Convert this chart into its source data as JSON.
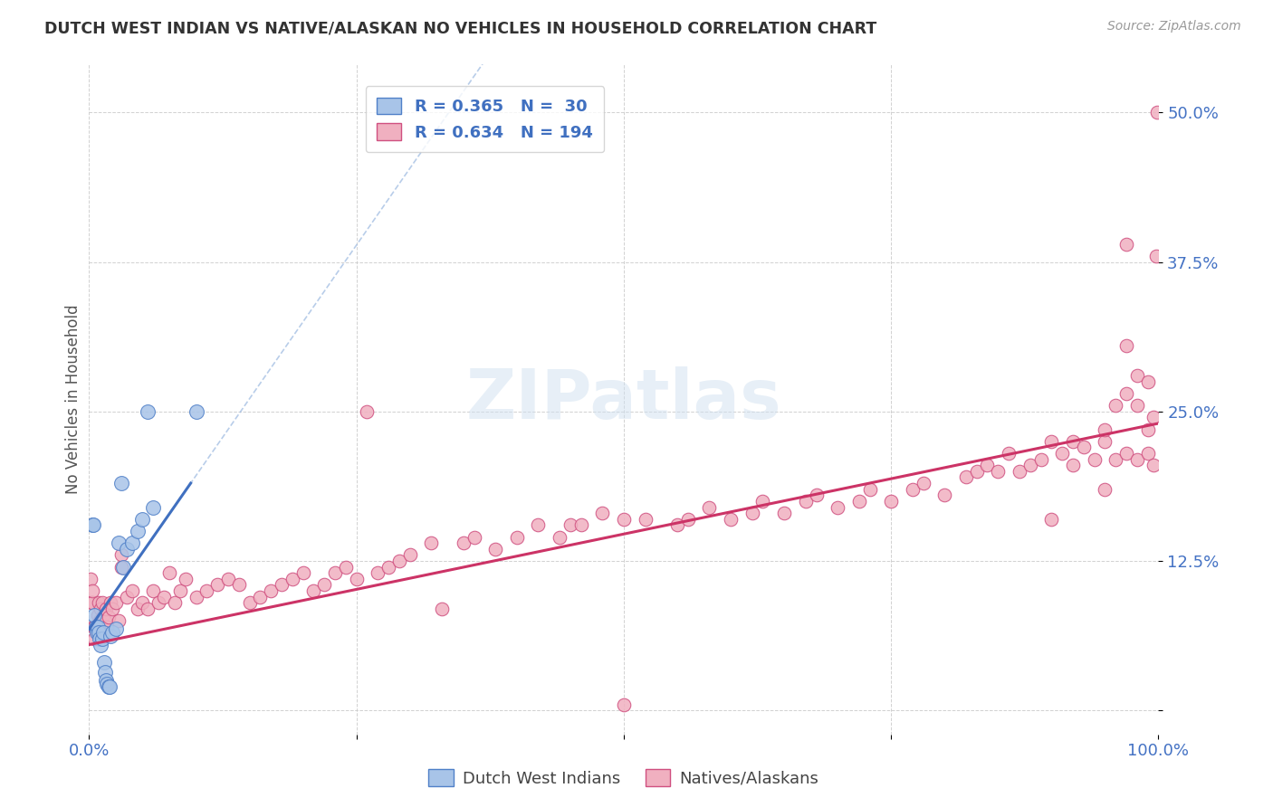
{
  "title": "DUTCH WEST INDIAN VS NATIVE/ALASKAN NO VEHICLES IN HOUSEHOLD CORRELATION CHART",
  "source": "Source: ZipAtlas.com",
  "ylabel": "No Vehicles in Household",
  "xlim": [
    0.0,
    1.0
  ],
  "ylim": [
    -0.02,
    0.54
  ],
  "legend_blue_r": "0.365",
  "legend_blue_n": "30",
  "legend_pink_r": "0.634",
  "legend_pink_n": "194",
  "blue_scatter_color": "#a8c4e8",
  "blue_edge_color": "#5080c8",
  "pink_scatter_color": "#f0b0c0",
  "pink_edge_color": "#d05080",
  "blue_line_color": "#4070c0",
  "pink_line_color": "#cc3366",
  "blue_dashed_color": "#9ab8e0",
  "blue_scatter": [
    [
      0.003,
      0.155
    ],
    [
      0.004,
      0.155
    ],
    [
      0.005,
      0.08
    ],
    [
      0.006,
      0.07
    ],
    [
      0.007,
      0.065
    ],
    [
      0.008,
      0.07
    ],
    [
      0.009,
      0.065
    ],
    [
      0.01,
      0.06
    ],
    [
      0.011,
      0.055
    ],
    [
      0.012,
      0.06
    ],
    [
      0.013,
      0.065
    ],
    [
      0.014,
      0.04
    ],
    [
      0.015,
      0.032
    ],
    [
      0.016,
      0.025
    ],
    [
      0.017,
      0.022
    ],
    [
      0.018,
      0.02
    ],
    [
      0.019,
      0.02
    ],
    [
      0.02,
      0.062
    ],
    [
      0.022,
      0.065
    ],
    [
      0.025,
      0.068
    ],
    [
      0.028,
      0.14
    ],
    [
      0.03,
      0.19
    ],
    [
      0.032,
      0.12
    ],
    [
      0.035,
      0.135
    ],
    [
      0.04,
      0.14
    ],
    [
      0.045,
      0.15
    ],
    [
      0.05,
      0.16
    ],
    [
      0.055,
      0.25
    ],
    [
      0.06,
      0.17
    ],
    [
      0.1,
      0.25
    ]
  ],
  "pink_scatter": [
    [
      0.001,
      0.11
    ],
    [
      0.002,
      0.09
    ],
    [
      0.003,
      0.09
    ],
    [
      0.003,
      0.1
    ],
    [
      0.004,
      0.07
    ],
    [
      0.005,
      0.06
    ],
    [
      0.005,
      0.07
    ],
    [
      0.006,
      0.07
    ],
    [
      0.007,
      0.065
    ],
    [
      0.008,
      0.08
    ],
    [
      0.009,
      0.09
    ],
    [
      0.01,
      0.075
    ],
    [
      0.011,
      0.085
    ],
    [
      0.012,
      0.09
    ],
    [
      0.013,
      0.08
    ],
    [
      0.014,
      0.065
    ],
    [
      0.015,
      0.075
    ],
    [
      0.016,
      0.085
    ],
    [
      0.017,
      0.07
    ],
    [
      0.018,
      0.078
    ],
    [
      0.02,
      0.09
    ],
    [
      0.022,
      0.085
    ],
    [
      0.025,
      0.09
    ],
    [
      0.028,
      0.075
    ],
    [
      0.03,
      0.12
    ],
    [
      0.03,
      0.13
    ],
    [
      0.035,
      0.095
    ],
    [
      0.04,
      0.1
    ],
    [
      0.045,
      0.085
    ],
    [
      0.05,
      0.09
    ],
    [
      0.055,
      0.085
    ],
    [
      0.06,
      0.1
    ],
    [
      0.065,
      0.09
    ],
    [
      0.07,
      0.095
    ],
    [
      0.075,
      0.115
    ],
    [
      0.08,
      0.09
    ],
    [
      0.085,
      0.1
    ],
    [
      0.09,
      0.11
    ],
    [
      0.1,
      0.095
    ],
    [
      0.11,
      0.1
    ],
    [
      0.12,
      0.105
    ],
    [
      0.13,
      0.11
    ],
    [
      0.14,
      0.105
    ],
    [
      0.15,
      0.09
    ],
    [
      0.16,
      0.095
    ],
    [
      0.17,
      0.1
    ],
    [
      0.18,
      0.105
    ],
    [
      0.19,
      0.11
    ],
    [
      0.2,
      0.115
    ],
    [
      0.21,
      0.1
    ],
    [
      0.22,
      0.105
    ],
    [
      0.23,
      0.115
    ],
    [
      0.24,
      0.12
    ],
    [
      0.25,
      0.11
    ],
    [
      0.26,
      0.25
    ],
    [
      0.27,
      0.115
    ],
    [
      0.28,
      0.12
    ],
    [
      0.29,
      0.125
    ],
    [
      0.3,
      0.13
    ],
    [
      0.32,
      0.14
    ],
    [
      0.33,
      0.085
    ],
    [
      0.35,
      0.14
    ],
    [
      0.36,
      0.145
    ],
    [
      0.38,
      0.135
    ],
    [
      0.4,
      0.145
    ],
    [
      0.42,
      0.155
    ],
    [
      0.44,
      0.145
    ],
    [
      0.45,
      0.155
    ],
    [
      0.46,
      0.155
    ],
    [
      0.48,
      0.165
    ],
    [
      0.5,
      0.005
    ],
    [
      0.5,
      0.16
    ],
    [
      0.52,
      0.16
    ],
    [
      0.55,
      0.155
    ],
    [
      0.56,
      0.16
    ],
    [
      0.58,
      0.17
    ],
    [
      0.6,
      0.16
    ],
    [
      0.62,
      0.165
    ],
    [
      0.63,
      0.175
    ],
    [
      0.65,
      0.165
    ],
    [
      0.67,
      0.175
    ],
    [
      0.68,
      0.18
    ],
    [
      0.7,
      0.17
    ],
    [
      0.72,
      0.175
    ],
    [
      0.73,
      0.185
    ],
    [
      0.75,
      0.175
    ],
    [
      0.77,
      0.185
    ],
    [
      0.78,
      0.19
    ],
    [
      0.8,
      0.18
    ],
    [
      0.82,
      0.195
    ],
    [
      0.83,
      0.2
    ],
    [
      0.84,
      0.205
    ],
    [
      0.85,
      0.2
    ],
    [
      0.86,
      0.215
    ],
    [
      0.87,
      0.2
    ],
    [
      0.88,
      0.205
    ],
    [
      0.89,
      0.21
    ],
    [
      0.9,
      0.16
    ],
    [
      0.9,
      0.225
    ],
    [
      0.91,
      0.215
    ],
    [
      0.92,
      0.205
    ],
    [
      0.92,
      0.225
    ],
    [
      0.93,
      0.22
    ],
    [
      0.94,
      0.21
    ],
    [
      0.95,
      0.185
    ],
    [
      0.95,
      0.225
    ],
    [
      0.95,
      0.235
    ],
    [
      0.96,
      0.21
    ],
    [
      0.96,
      0.255
    ],
    [
      0.97,
      0.215
    ],
    [
      0.97,
      0.265
    ],
    [
      0.97,
      0.305
    ],
    [
      0.97,
      0.39
    ],
    [
      0.98,
      0.21
    ],
    [
      0.98,
      0.255
    ],
    [
      0.98,
      0.28
    ],
    [
      0.99,
      0.215
    ],
    [
      0.99,
      0.235
    ],
    [
      0.99,
      0.275
    ],
    [
      0.995,
      0.205
    ],
    [
      0.995,
      0.245
    ],
    [
      0.998,
      0.38
    ],
    [
      0.999,
      0.5
    ]
  ],
  "watermark": "ZIPatlas",
  "background_color": "#ffffff",
  "grid_color": "#cccccc"
}
